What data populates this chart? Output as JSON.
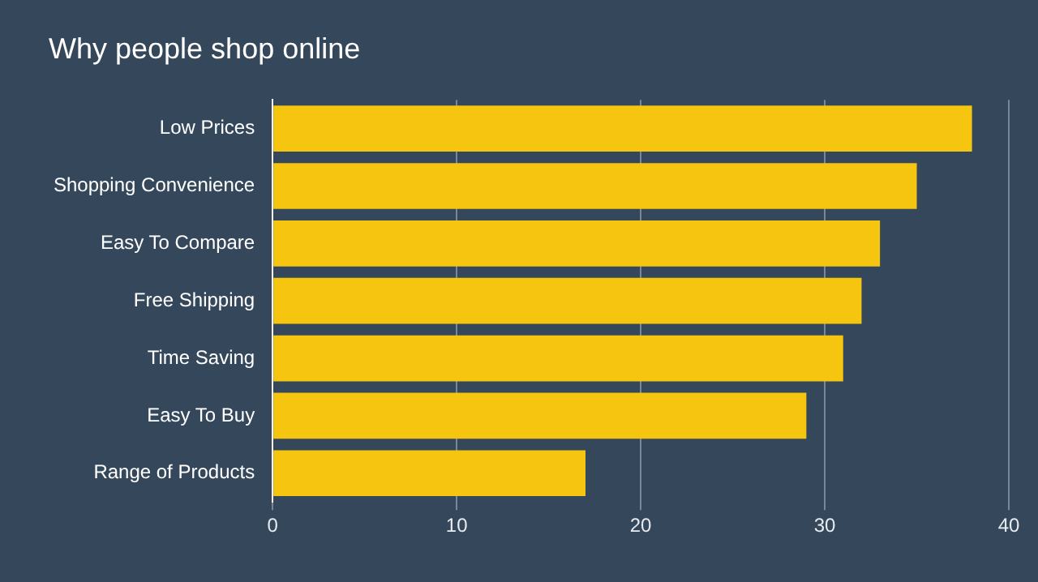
{
  "chart_data": {
    "type": "bar",
    "title": "Why people shop online",
    "orientation": "horizontal",
    "categories": [
      "Low Prices",
      "Shopping Convenience",
      "Easy To Compare",
      "Free Shipping",
      "Time Saving",
      "Easy To Buy",
      "Range of Products"
    ],
    "values": [
      38,
      35,
      33,
      32,
      31,
      29,
      17
    ],
    "color": "#f5c510",
    "xlim": [
      0,
      40
    ],
    "xticks": [
      0,
      10,
      20,
      30,
      40
    ],
    "grid": "x",
    "legend": false
  }
}
